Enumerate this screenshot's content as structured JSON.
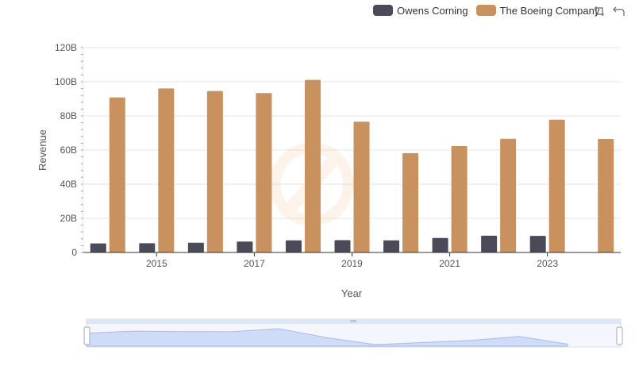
{
  "toolbar": {
    "zoom_icon": "zoom-select-icon",
    "reset_icon": "restore-icon"
  },
  "chart_data": {
    "type": "bar",
    "xlabel": "Year",
    "ylabel": "Revenue",
    "ylim": [
      0,
      120
    ],
    "y_ticks": [
      "0",
      "20B",
      "40B",
      "60B",
      "80B",
      "100B",
      "120B"
    ],
    "x_tick_labels": [
      "2015",
      "2017",
      "2019",
      "2021",
      "2023"
    ],
    "categories": [
      "2014",
      "2015",
      "2016",
      "2017",
      "2018",
      "2019",
      "2020",
      "2021",
      "2022",
      "2023",
      "2024"
    ],
    "series": [
      {
        "name": "Owens Corning",
        "color": "#4a4a58",
        "values": [
          5.3,
          5.4,
          5.7,
          6.4,
          7.1,
          7.2,
          7.1,
          8.5,
          9.8,
          9.7,
          null
        ]
      },
      {
        "name": "The Boeing Company",
        "color": "#c9915d",
        "values": [
          90.8,
          96.1,
          94.6,
          93.4,
          101.1,
          76.6,
          58.2,
          62.3,
          66.6,
          77.8,
          66.5
        ]
      }
    ],
    "legend_position": "top-right",
    "grid": true
  }
}
